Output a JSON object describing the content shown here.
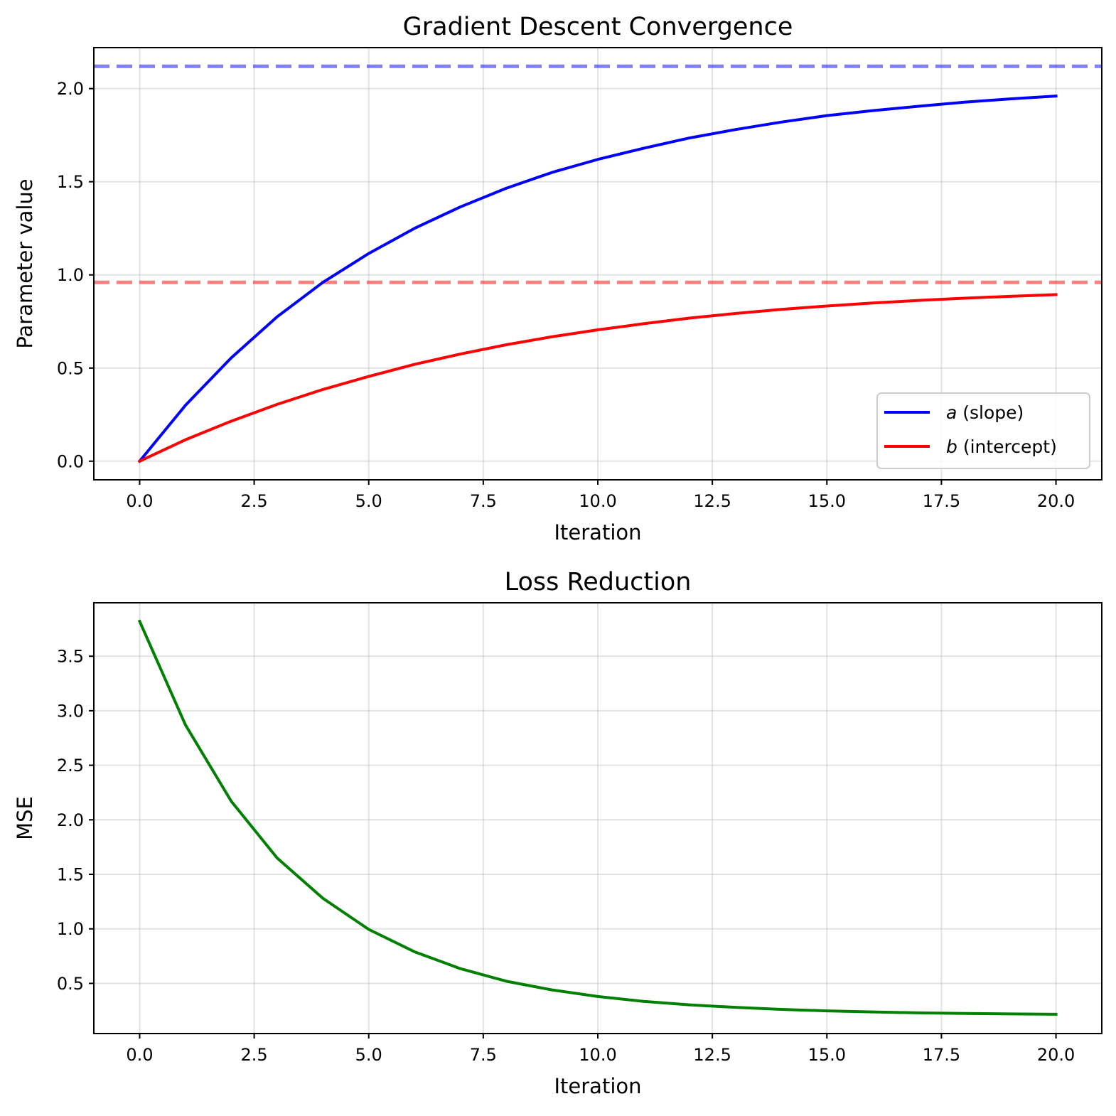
{
  "chart_data": [
    {
      "type": "line",
      "title": "Gradient Descent Convergence",
      "xlabel": "Iteration",
      "ylabel": "Parameter value",
      "xlim": [
        -1,
        21
      ],
      "ylim": [
        -0.1,
        2.22
      ],
      "xticks": [
        "0.0",
        "2.5",
        "5.0",
        "7.5",
        "10.0",
        "12.5",
        "15.0",
        "17.5",
        "20.0"
      ],
      "yticks": [
        "0.0",
        "0.5",
        "1.0",
        "1.5",
        "2.0"
      ],
      "grid": true,
      "legend_position": "lower-right",
      "x": [
        0,
        1,
        2,
        3,
        4,
        5,
        6,
        7,
        8,
        9,
        10,
        11,
        12,
        13,
        14,
        15,
        16,
        17,
        18,
        19,
        20
      ],
      "series": [
        {
          "name_var": "a",
          "name_rest": " (slope)",
          "color": "#0000ff",
          "values": [
            0.0,
            0.3,
            0.555,
            0.775,
            0.96,
            1.115,
            1.25,
            1.365,
            1.465,
            1.55,
            1.62,
            1.68,
            1.735,
            1.78,
            1.82,
            1.855,
            1.882,
            1.905,
            1.927,
            1.945,
            1.96
          ]
        },
        {
          "name_var": "b",
          "name_rest": " (intercept)",
          "color": "#ff0000",
          "values": [
            0.0,
            0.115,
            0.215,
            0.305,
            0.385,
            0.455,
            0.52,
            0.575,
            0.625,
            0.668,
            0.705,
            0.738,
            0.768,
            0.793,
            0.815,
            0.833,
            0.849,
            0.863,
            0.875,
            0.885,
            0.894
          ]
        }
      ],
      "reference_lines": [
        {
          "y": 2.12,
          "color": "#0000ff",
          "opacity": 0.5,
          "style": "dashed"
        },
        {
          "y": 0.96,
          "color": "#ff0000",
          "opacity": 0.5,
          "style": "dashed"
        }
      ]
    },
    {
      "type": "line",
      "title": "Loss Reduction",
      "xlabel": "Iteration",
      "ylabel": "MSE",
      "xlim": [
        -1,
        21
      ],
      "ylim": [
        0.04,
        3.99
      ],
      "xticks": [
        "0.0",
        "2.5",
        "5.0",
        "7.5",
        "10.0",
        "12.5",
        "15.0",
        "17.5",
        "20.0"
      ],
      "yticks": [
        "0.5",
        "1.0",
        "1.5",
        "2.0",
        "2.5",
        "3.0",
        "3.5"
      ],
      "grid": true,
      "x": [
        0,
        1,
        2,
        3,
        4,
        5,
        6,
        7,
        8,
        9,
        10,
        11,
        12,
        13,
        14,
        15,
        16,
        17,
        18,
        19,
        20
      ],
      "series": [
        {
          "color": "#008000",
          "values": [
            3.82,
            2.87,
            2.17,
            1.65,
            1.28,
            0.995,
            0.79,
            0.635,
            0.52,
            0.44,
            0.38,
            0.335,
            0.303,
            0.28,
            0.262,
            0.248,
            0.238,
            0.23,
            0.224,
            0.22,
            0.217
          ]
        }
      ]
    }
  ]
}
